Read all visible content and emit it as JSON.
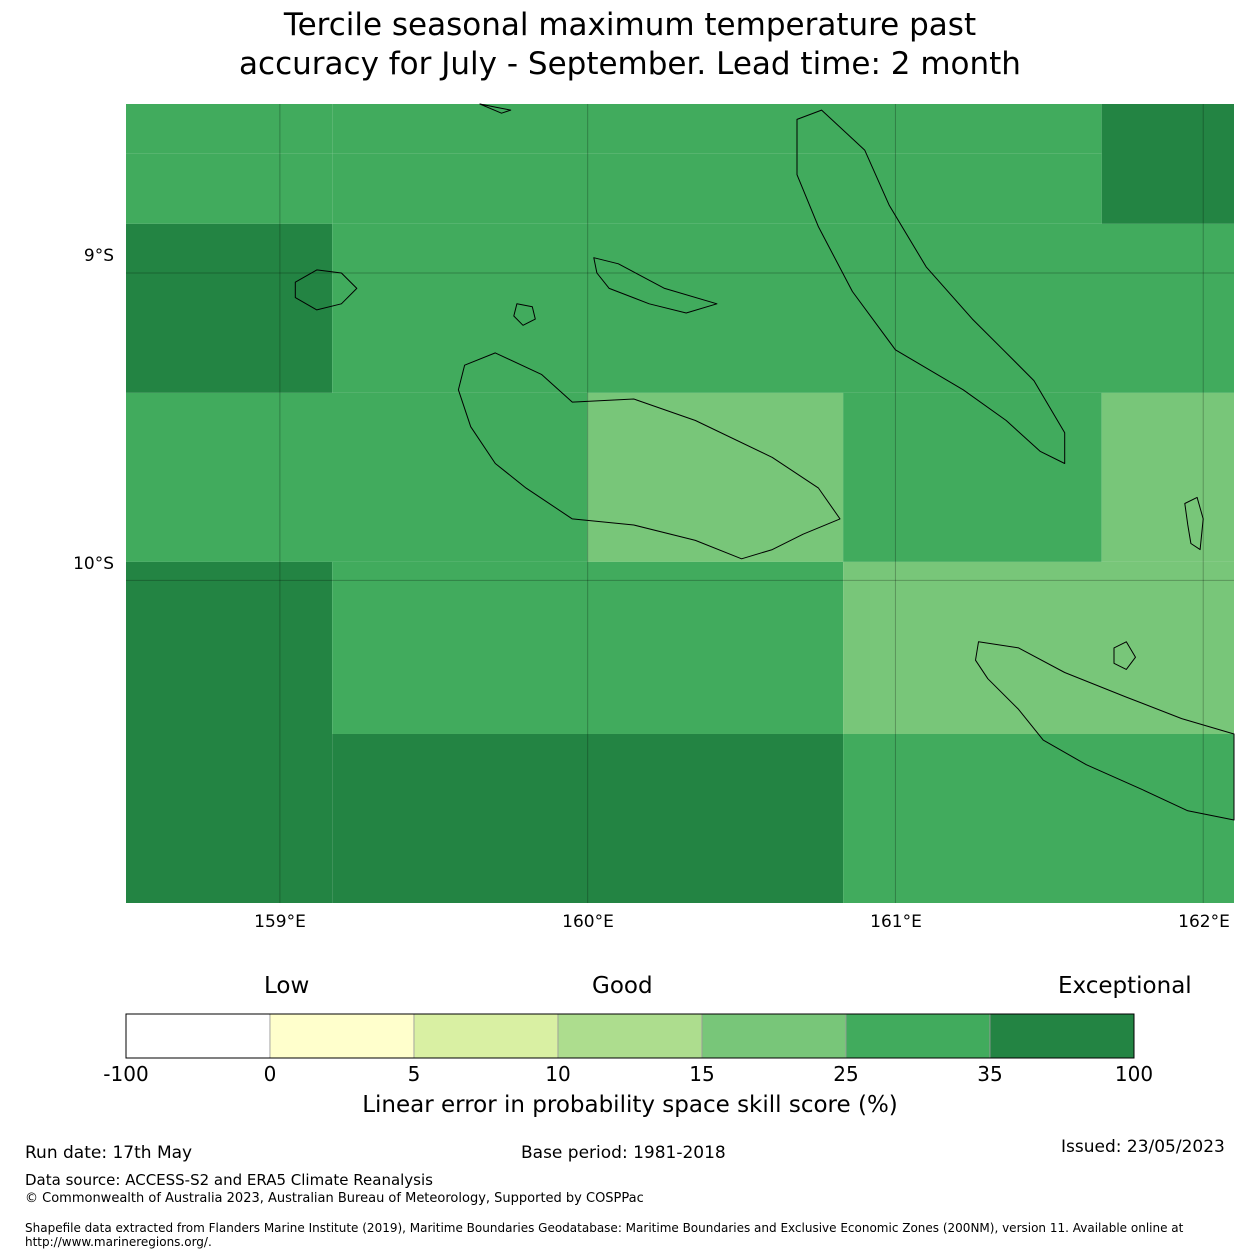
{
  "title": "Tercile seasonal maximum temperature past\naccuracy for July - September. Lead time: 2 month",
  "map": {
    "lat_labels": [
      "9°S",
      "10°S"
    ],
    "lon_labels": [
      "159°E",
      "160°E",
      "161°E",
      "162°E"
    ],
    "lon_range": [
      158.5,
      162.1
    ],
    "lat_range": [
      -11.05,
      -8.45
    ],
    "grid_cells": [
      {
        "lon0": 158.5,
        "lon1": 159.17,
        "lat0": -8.45,
        "lat1": -8.61,
        "level": "25-35"
      },
      {
        "lon0": 159.17,
        "lon1": 161.67,
        "lat0": -8.45,
        "lat1": -8.61,
        "level": "25-35"
      },
      {
        "lon0": 161.67,
        "lon1": 162.1,
        "lat0": -8.45,
        "lat1": -8.84,
        "level": "35-100"
      },
      {
        "lon0": 158.5,
        "lon1": 159.17,
        "lat0": -8.61,
        "lat1": -8.84,
        "level": "25-35"
      },
      {
        "lon0": 159.17,
        "lon1": 161.67,
        "lat0": -8.61,
        "lat1": -8.84,
        "level": "25-35"
      },
      {
        "lon0": 158.5,
        "lon1": 159.17,
        "lat0": -8.84,
        "lat1": -9.39,
        "level": "35-100"
      },
      {
        "lon0": 159.17,
        "lon1": 162.1,
        "lat0": -8.84,
        "lat1": -9.39,
        "level": "25-35"
      },
      {
        "lon0": 158.5,
        "lon1": 160.0,
        "lat0": -9.39,
        "lat1": -9.94,
        "level": "25-35"
      },
      {
        "lon0": 160.0,
        "lon1": 160.83,
        "lat0": -9.39,
        "lat1": -9.94,
        "level": "15-25"
      },
      {
        "lon0": 160.83,
        "lon1": 161.67,
        "lat0": -9.39,
        "lat1": -9.94,
        "level": "25-35"
      },
      {
        "lon0": 161.67,
        "lon1": 162.1,
        "lat0": -9.39,
        "lat1": -9.94,
        "level": "15-25"
      },
      {
        "lon0": 158.5,
        "lon1": 159.17,
        "lat0": -9.94,
        "lat1": -11.05,
        "level": "35-100"
      },
      {
        "lon0": 159.17,
        "lon1": 160.83,
        "lat0": -9.94,
        "lat1": -10.5,
        "level": "25-35"
      },
      {
        "lon0": 160.83,
        "lon1": 162.1,
        "lat0": -9.94,
        "lat1": -10.5,
        "level": "15-25"
      },
      {
        "lon0": 159.17,
        "lon1": 160.83,
        "lat0": -10.5,
        "lat1": -11.05,
        "level": "35-100"
      },
      {
        "lon0": 160.83,
        "lon1": 162.1,
        "lat0": -10.5,
        "lat1": -11.05,
        "level": "25-35"
      }
    ],
    "islands": [
      {
        "name": "Guadalcanal",
        "points": [
          [
            159.6,
            -9.3
          ],
          [
            159.7,
            -9.26
          ],
          [
            159.85,
            -9.33
          ],
          [
            159.95,
            -9.42
          ],
          [
            160.15,
            -9.41
          ],
          [
            160.35,
            -9.48
          ],
          [
            160.6,
            -9.6
          ],
          [
            160.75,
            -9.7
          ],
          [
            160.82,
            -9.8
          ],
          [
            160.7,
            -9.85
          ],
          [
            160.6,
            -9.9
          ],
          [
            160.5,
            -9.93
          ],
          [
            160.35,
            -9.87
          ],
          [
            160.15,
            -9.82
          ],
          [
            159.95,
            -9.8
          ],
          [
            159.8,
            -9.7
          ],
          [
            159.7,
            -9.62
          ],
          [
            159.62,
            -9.5
          ],
          [
            159.58,
            -9.38
          ]
        ]
      },
      {
        "name": "Santa Isabel",
        "points": [
          [
            159.65,
            -8.45
          ],
          [
            159.7,
            -8.46
          ],
          [
            159.75,
            -8.47
          ],
          [
            159.72,
            -8.48
          ]
        ]
      },
      {
        "name": "Nggela",
        "points": [
          [
            160.02,
            -8.95
          ],
          [
            160.1,
            -8.97
          ],
          [
            160.25,
            -9.05
          ],
          [
            160.42,
            -9.1
          ],
          [
            160.32,
            -9.13
          ],
          [
            160.2,
            -9.1
          ],
          [
            160.07,
            -9.05
          ],
          [
            160.03,
            -9.0
          ]
        ]
      },
      {
        "name": "Savo",
        "points": [
          [
            159.77,
            -9.1
          ],
          [
            159.82,
            -9.11
          ],
          [
            159.83,
            -9.15
          ],
          [
            159.79,
            -9.17
          ],
          [
            159.76,
            -9.14
          ]
        ]
      },
      {
        "name": "Russell Islands",
        "points": [
          [
            159.05,
            -9.03
          ],
          [
            159.12,
            -8.99
          ],
          [
            159.2,
            -9.0
          ],
          [
            159.25,
            -9.05
          ],
          [
            159.2,
            -9.1
          ],
          [
            159.12,
            -9.12
          ],
          [
            159.05,
            -9.08
          ]
        ]
      },
      {
        "name": "Malaita",
        "points": [
          [
            160.68,
            -8.5
          ],
          [
            160.76,
            -8.47
          ],
          [
            160.9,
            -8.6
          ],
          [
            160.98,
            -8.78
          ],
          [
            161.1,
            -8.98
          ],
          [
            161.25,
            -9.15
          ],
          [
            161.35,
            -9.25
          ],
          [
            161.45,
            -9.35
          ],
          [
            161.55,
            -9.52
          ],
          [
            161.55,
            -9.62
          ],
          [
            161.47,
            -9.58
          ],
          [
            161.36,
            -9.48
          ],
          [
            161.22,
            -9.38
          ],
          [
            161.0,
            -9.25
          ],
          [
            160.86,
            -9.06
          ],
          [
            160.75,
            -8.85
          ],
          [
            160.68,
            -8.68
          ]
        ]
      },
      {
        "name": "Makira",
        "points": [
          [
            161.27,
            -10.2
          ],
          [
            161.4,
            -10.22
          ],
          [
            161.55,
            -10.3
          ],
          [
            161.75,
            -10.38
          ],
          [
            161.93,
            -10.45
          ],
          [
            162.1,
            -10.5
          ],
          [
            162.1,
            -10.78
          ],
          [
            161.95,
            -10.75
          ],
          [
            161.8,
            -10.68
          ],
          [
            161.62,
            -10.6
          ],
          [
            161.48,
            -10.52
          ],
          [
            161.4,
            -10.42
          ],
          [
            161.3,
            -10.32
          ],
          [
            161.26,
            -10.26
          ]
        ]
      },
      {
        "name": "Ulawa",
        "points": [
          [
            161.94,
            -9.75
          ],
          [
            161.98,
            -9.73
          ],
          [
            162.0,
            -9.8
          ],
          [
            161.99,
            -9.9
          ],
          [
            161.96,
            -9.88
          ],
          [
            161.95,
            -9.82
          ]
        ]
      },
      {
        "name": "Ugi",
        "points": [
          [
            161.71,
            -10.22
          ],
          [
            161.75,
            -10.2
          ],
          [
            161.78,
            -10.25
          ],
          [
            161.75,
            -10.29
          ],
          [
            161.71,
            -10.27
          ]
        ]
      }
    ]
  },
  "legend": {
    "categories": [
      "Low",
      "Good",
      "Exceptional"
    ],
    "ticks": [
      "-100",
      "0",
      "5",
      "10",
      "15",
      "25",
      "35",
      "100"
    ],
    "colors": [
      "#ffffff",
      "#ffffcc",
      "#d9f0a3",
      "#addd8e",
      "#78c679",
      "#41ab5d",
      "#238443"
    ],
    "title": "Linear error in probability space skill score (%)"
  },
  "footer": {
    "run_date": "Run date: 17th May",
    "base_period": "Base period: 1981-2018",
    "issued": "Issued: 23/05/2023",
    "data_source": "Data source: ACCESS-S2 and ERA5 Climate Reanalysis",
    "copyright": "© Commonwealth of Australia 2023, Australian Bureau of Meteorology, Supported by COSPPac",
    "shapefile": "Shapefile data extracted from Flanders Marine Institute (2019), Maritime Boundaries Geodatabase: Maritime Boundaries and Exclusive Economic Zones (200NM), version 11. Available online at http://www.marineregions.org/."
  }
}
